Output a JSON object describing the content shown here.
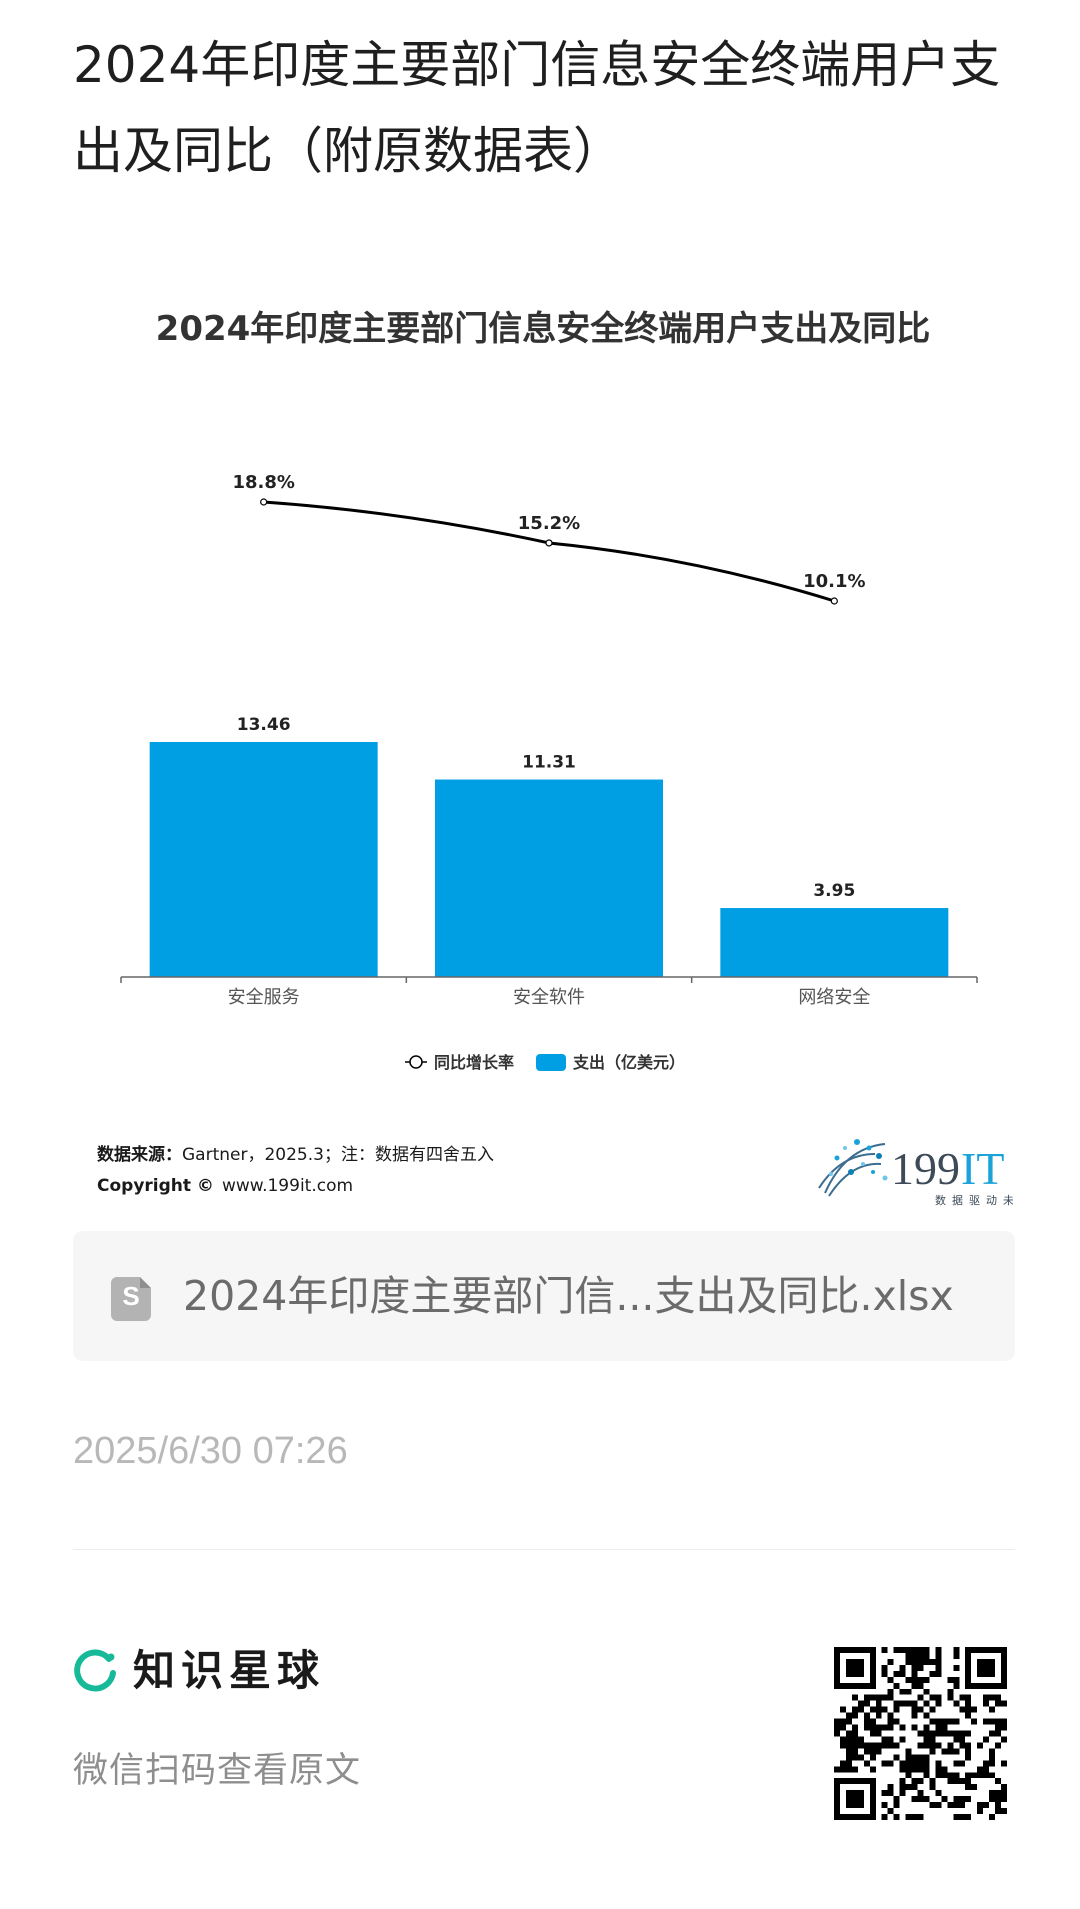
{
  "article": {
    "title": "2024年印度主要部门信息安全终端用户支出及同比（附原数据表）",
    "timestamp": "2025/6/30 07:26"
  },
  "chart": {
    "footer": {
      "source_label": "数据来源：",
      "source_text": "Gartner，2025.3；注：数据有四舍五入",
      "copyright_label": "Copyright ©",
      "copyright_text": "www.199it.com"
    },
    "logo": {
      "text": "199IT",
      "tagline": "数据驱动未来"
    }
  },
  "chart_data": {
    "type": "bar",
    "title": "2024年印度主要部门信息安全终端用户支出及同比",
    "categories": [
      "安全服务",
      "安全软件",
      "网络安全"
    ],
    "series": [
      {
        "name": "支出（亿美元）",
        "type": "bar",
        "values": [
          13.46,
          11.31,
          3.95
        ],
        "labels": [
          "13.46",
          "11.31",
          "3.95"
        ],
        "color": "#009fe3"
      },
      {
        "name": "同比增长率",
        "type": "line",
        "values": [
          18.8,
          15.2,
          10.1
        ],
        "labels": [
          "18.8%",
          "15.2%",
          "10.1%"
        ],
        "color": "#000000"
      }
    ],
    "legend_position": "bottom",
    "grid": false
  },
  "attachment": {
    "file_name": "2024年印度主要部门信...支出及同比.xlsx",
    "icon_letter": "S"
  },
  "footer": {
    "brand_name": "知识星球",
    "scan_text": "微信扫码查看原文",
    "brand_color": "#16b998"
  }
}
